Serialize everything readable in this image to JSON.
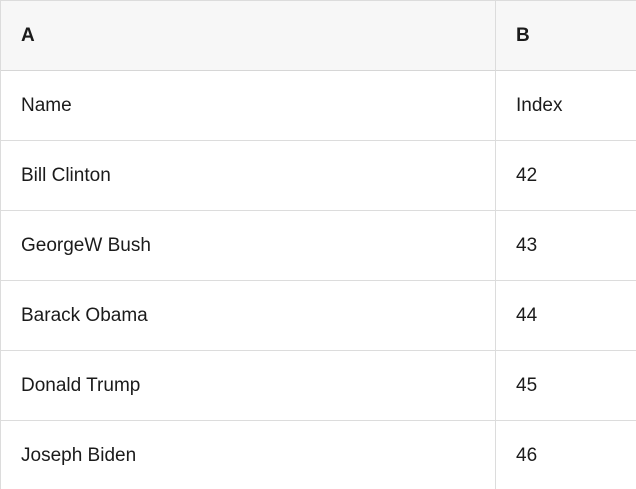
{
  "table": {
    "columns": [
      {
        "label": "A"
      },
      {
        "label": "B"
      }
    ],
    "rows": [
      [
        "Name",
        "Index"
      ],
      [
        "Bill Clinton",
        "42"
      ],
      [
        "GeorgeW Bush",
        "43"
      ],
      [
        "Barack Obama",
        "44"
      ],
      [
        "Donald Trump",
        "45"
      ],
      [
        "Joseph Biden",
        "46"
      ]
    ]
  },
  "colors": {
    "header_bg": "#f7f7f7",
    "row_bg": "#ffffff",
    "border": "#dcdcdc",
    "text": "#1b1b1b"
  }
}
